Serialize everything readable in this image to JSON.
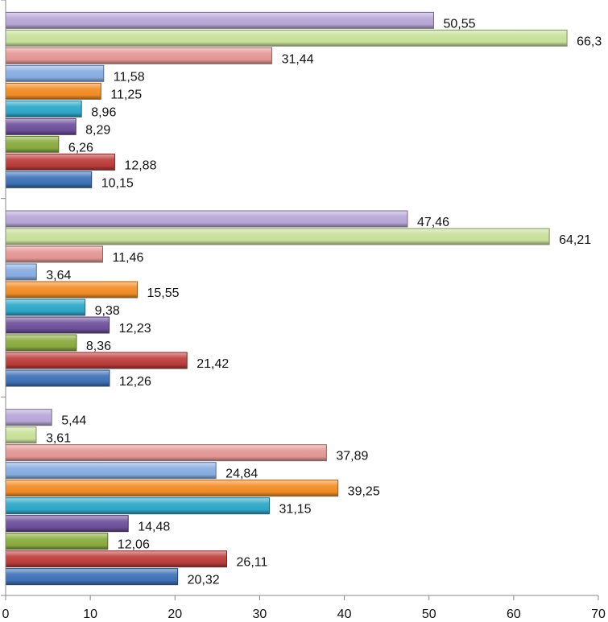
{
  "chart_data": {
    "type": "bar",
    "orientation": "horizontal",
    "bar_style": "3d-gradient",
    "categories": [
      "",
      "",
      ""
    ],
    "series": [
      {
        "color": "#3b6fb6",
        "values": [
          20.32,
          12.26,
          10.15
        ],
        "labels": [
          "20,32",
          "12,26",
          "10,15"
        ]
      },
      {
        "color": "#b93a38",
        "values": [
          26.11,
          21.42,
          12.88
        ],
        "labels": [
          "26,11",
          "21,42",
          "12,88"
        ]
      },
      {
        "color": "#87a93c",
        "values": [
          12.06,
          8.36,
          6.26
        ],
        "labels": [
          "12,06",
          "8,36",
          "6,26"
        ]
      },
      {
        "color": "#6b4d99",
        "values": [
          14.48,
          12.23,
          8.29
        ],
        "labels": [
          "14,48",
          "12,23",
          "8,29"
        ]
      },
      {
        "color": "#2aa5c6",
        "values": [
          31.15,
          9.38,
          8.96
        ],
        "labels": [
          "31,15",
          "9,38",
          "8,96"
        ]
      },
      {
        "color": "#f08a22",
        "values": [
          39.25,
          15.55,
          11.25
        ],
        "labels": [
          "39,25",
          "15,55",
          "11,25"
        ]
      },
      {
        "color": "#86abe0",
        "values": [
          24.84,
          3.64,
          11.58
        ],
        "labels": [
          "24,84",
          "3,64",
          "11,58"
        ]
      },
      {
        "color": "#e29593",
        "values": [
          37.89,
          11.46,
          31.44
        ],
        "labels": [
          "37,89",
          "11,46",
          "31,44"
        ]
      },
      {
        "color": "#c6df98",
        "values": [
          3.61,
          64.21,
          66.3
        ],
        "labels": [
          "3,61",
          "64,21",
          "66,3"
        ]
      },
      {
        "color": "#b6a5d6",
        "values": [
          5.44,
          47.46,
          50.55
        ],
        "labels": [
          "5,44",
          "47,46",
          "50,55"
        ]
      }
    ],
    "xlim": [
      0,
      70
    ],
    "xticks": [
      "0",
      "10",
      "20",
      "30",
      "40",
      "50",
      "60",
      "70"
    ],
    "grid": false,
    "legend": "none",
    "title": "",
    "xlabel": "",
    "ylabel": ""
  }
}
